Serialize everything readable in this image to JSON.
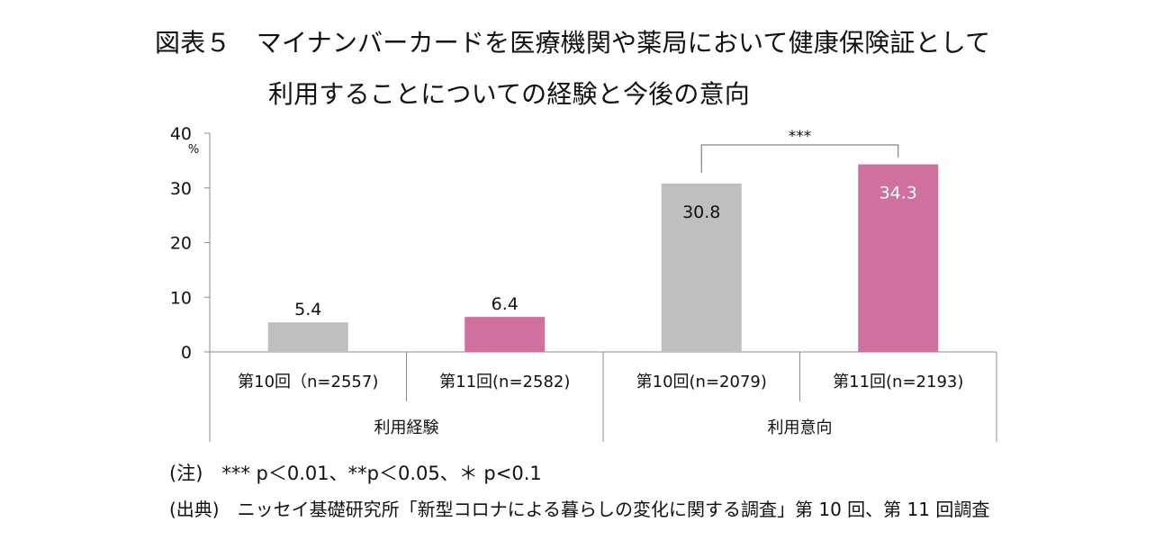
{
  "title": {
    "line1": "図表５　マイナンバーカードを医療機関や薬局において健康保険証として",
    "line2": "利用することについての経験と今後の意向"
  },
  "chart_data": {
    "type": "bar",
    "y_unit": "%",
    "ylim": [
      0,
      40
    ],
    "yticks": [
      0,
      10,
      20,
      30,
      40
    ],
    "grid": false,
    "categories": [
      "第10回（n=2557)",
      "第11回(n=2582)",
      "第10回(n=2079)",
      "第11回(n=2193)"
    ],
    "groups": [
      "利用経験",
      "利用意向"
    ],
    "values": [
      5.4,
      6.4,
      30.8,
      34.3
    ],
    "value_labels": [
      "5.4",
      "6.4",
      "30.8",
      "34.3"
    ],
    "colors": [
      "#bfbfbf",
      "#d0709f",
      "#bfbfbf",
      "#d0709f"
    ],
    "label_colors": [
      "#111111",
      "#111111",
      "#111111",
      "#ffffff"
    ],
    "significance": {
      "between": [
        2,
        3
      ],
      "label": "***"
    }
  },
  "notes": {
    "significance_note": "(注)　*** p＜0.01、**p＜0.05、＊ p<0.1",
    "source_note": "(出典)　ニッセイ基礎研究所「新型コロナによる暮らしの変化に関する調査」第 10 回、第 11 回調査"
  }
}
